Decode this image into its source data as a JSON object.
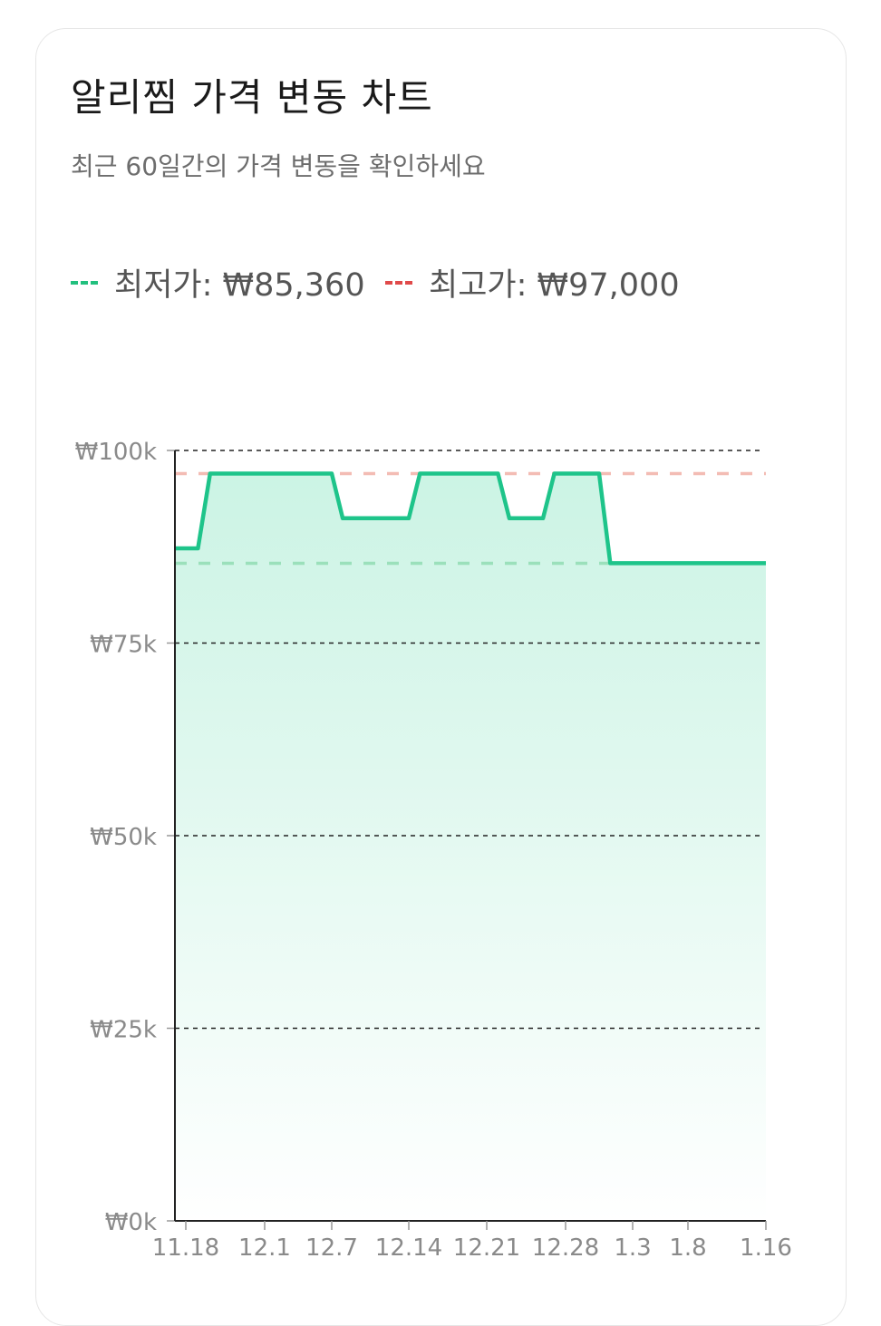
{
  "card": {
    "title": "알리찜 가격 변동 차트",
    "subtitle": "최근 60일간의 가격 변동을 확인하세요"
  },
  "legend": [
    {
      "label": "최저가: ₩85,360",
      "color": "#22c07e"
    },
    {
      "label": "최고가: ₩97,000",
      "color": "#e04a4a"
    }
  ],
  "chart_data": {
    "type": "area",
    "x": [
      "11.16",
      "11.20",
      "11.22",
      "12.7",
      "12.8",
      "12.14",
      "12.15",
      "12.22",
      "12.23",
      "12.26",
      "12.27",
      "12.31",
      "1.1",
      "1.16"
    ],
    "values": [
      87300,
      87300,
      97000,
      97000,
      91200,
      91200,
      97000,
      97000,
      91200,
      91200,
      97000,
      97000,
      85360,
      85360
    ],
    "ylim": [
      0,
      100000
    ],
    "y_ticks": [
      0,
      25000,
      50000,
      75000,
      100000
    ],
    "y_tick_labels": [
      "₩0k",
      "₩25k",
      "₩50k",
      "₩75k",
      "₩100k"
    ],
    "x_tick_labels": [
      "11.18",
      "12.1",
      "12.7",
      "12.14",
      "12.21",
      "12.28",
      "1.3",
      "1.8",
      "1.16"
    ],
    "reference_lines": [
      {
        "value": 85360,
        "color": "#9be0bb"
      },
      {
        "value": 97000,
        "color": "#f3bcb4"
      }
    ],
    "line_color": "#1ec48a",
    "fill_color": "#c9f3e3",
    "grid": "horizontal dashed"
  }
}
